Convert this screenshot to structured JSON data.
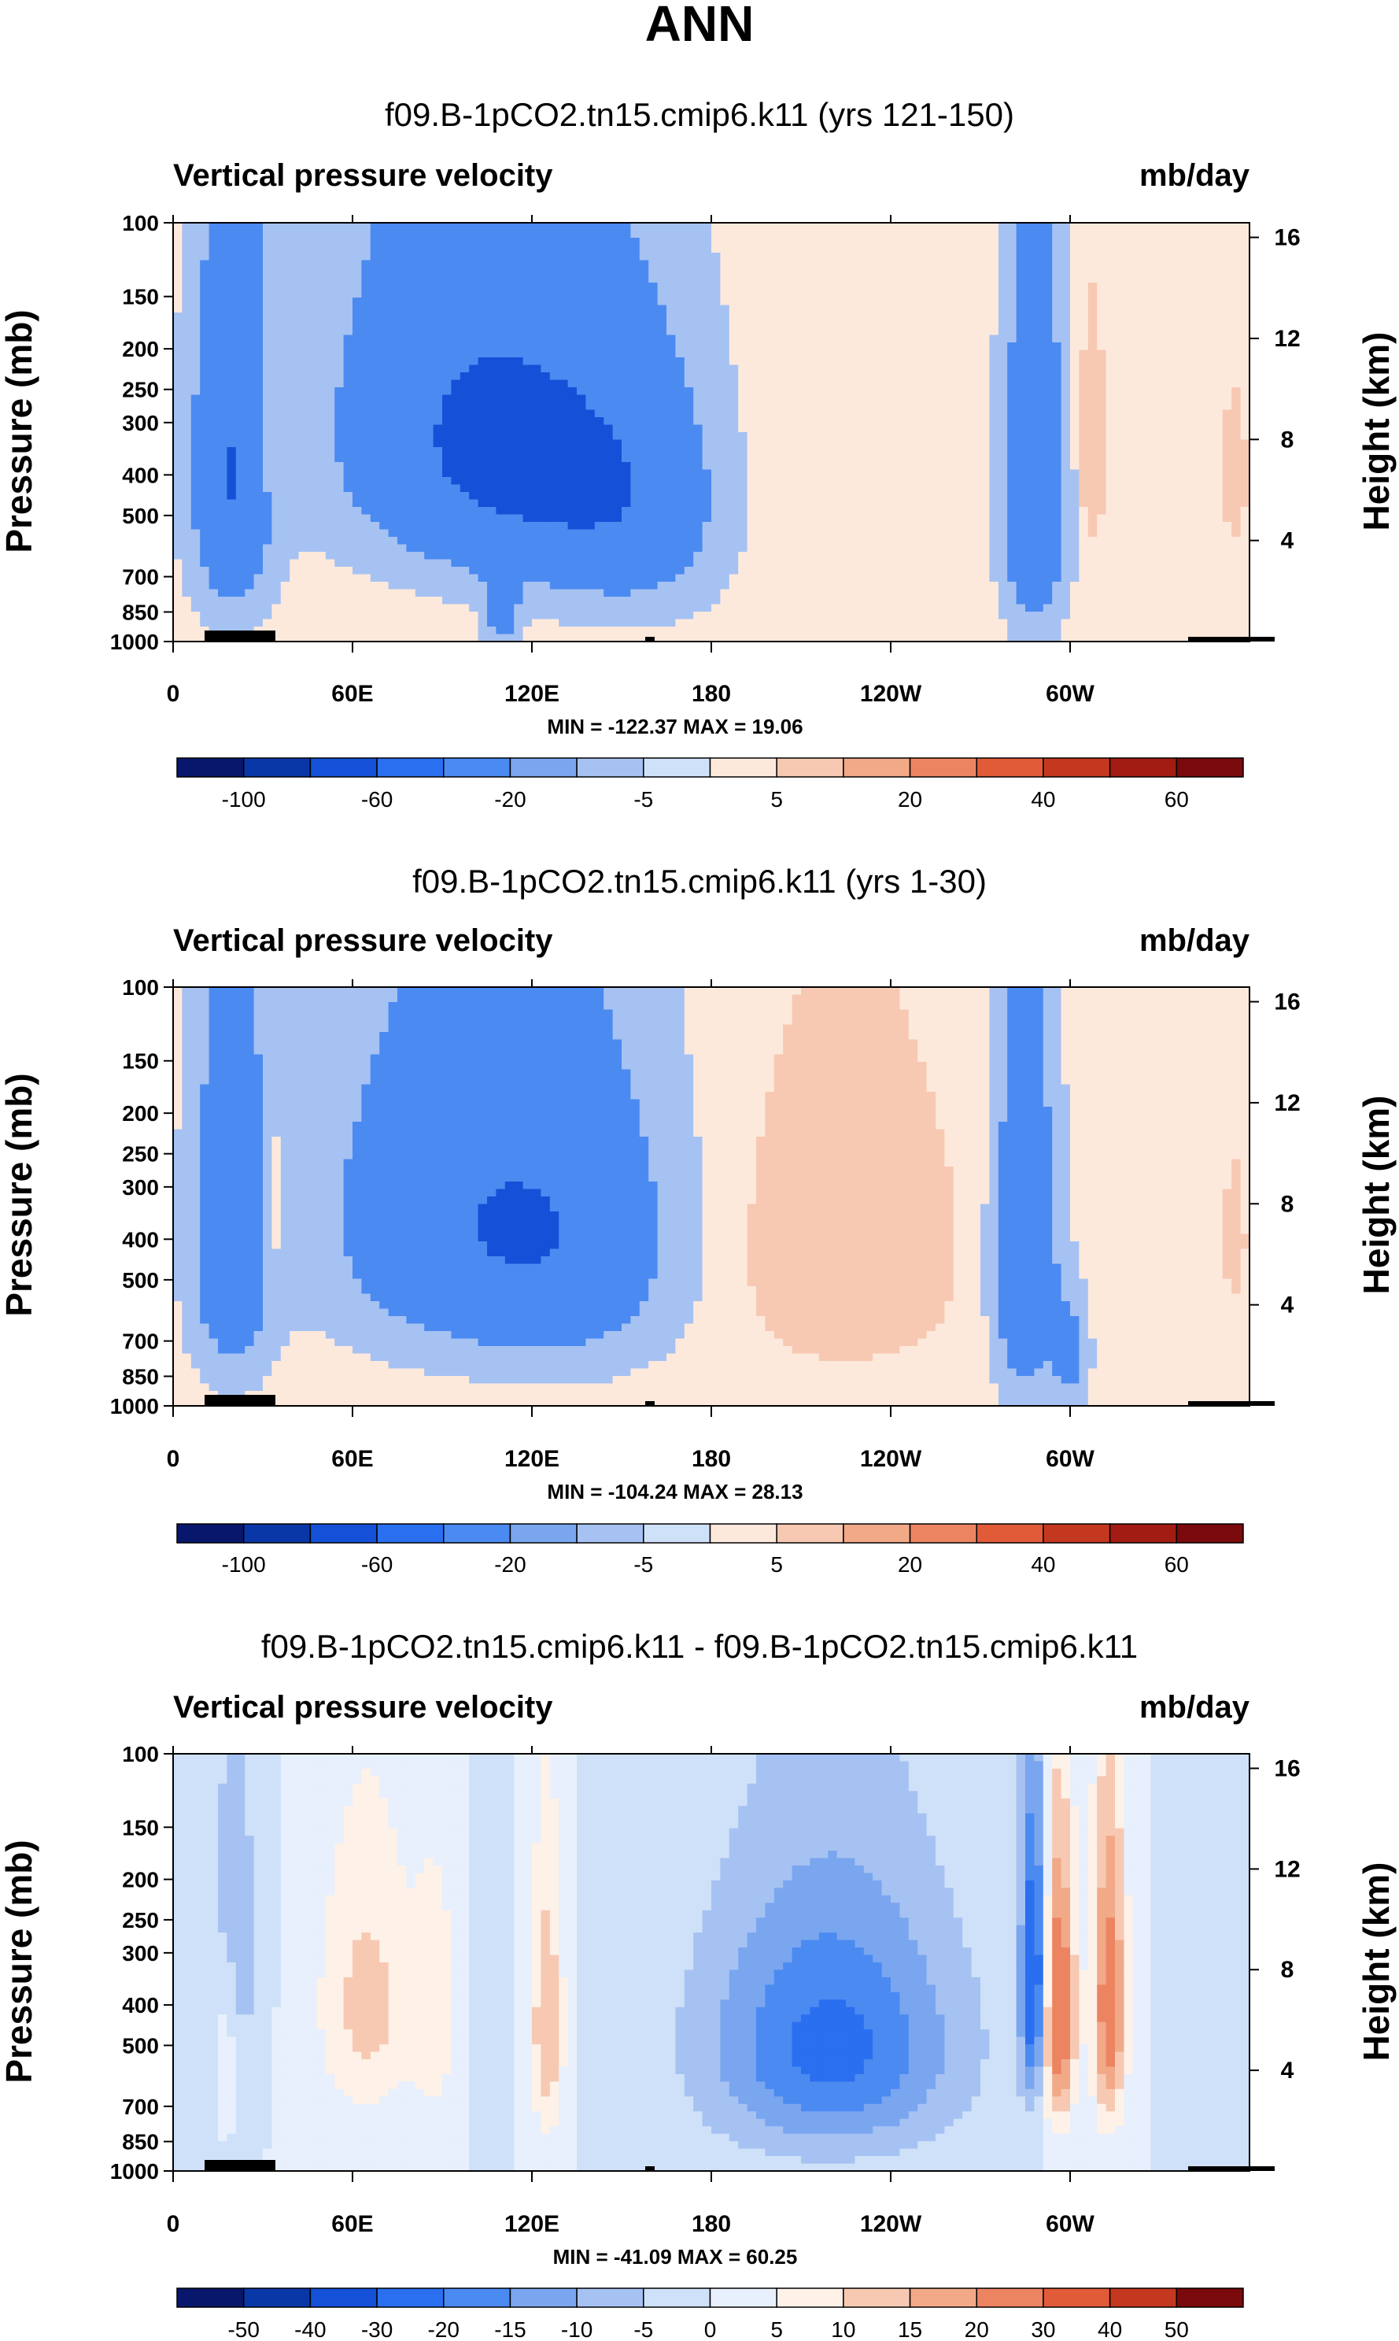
{
  "page_title": "ANN",
  "chart_data": [
    {
      "type": "heatmap",
      "title": "f09.B-1pCO2.tn15.cmip6.k11 (yrs 121-150)",
      "variable": "Vertical pressure velocity",
      "units": "mb/day",
      "ylabel": "Pressure (mb)",
      "ylabel_right": "Height (km)",
      "xticks": [
        "0",
        "60E",
        "120E",
        "180",
        "120W",
        "60W"
      ],
      "xtick_lons": [
        0,
        60,
        120,
        180,
        240,
        300
      ],
      "xlim": [
        0,
        360
      ],
      "yticks": [
        "100",
        "150",
        "200",
        "250",
        "300",
        "400",
        "500",
        "700",
        "850",
        "1000"
      ],
      "ytick_vals": [
        100,
        150,
        200,
        250,
        300,
        400,
        500,
        700,
        850,
        1000
      ],
      "yticks_right": [
        "16",
        "12",
        "8",
        "4"
      ],
      "ytick_right_vals": [
        16,
        12,
        8,
        4
      ],
      "ylim": [
        100,
        1000
      ],
      "min": -122.37,
      "max": 19.06,
      "minmax_text": "MIN = -122.37  MAX =  19.06",
      "colorbar_labels": [
        "-100",
        "-60",
        "-20",
        "-5",
        "5",
        "20",
        "40",
        "60"
      ],
      "field": [
        {
          "lon": 20,
          "p": 400,
          "value": -60,
          "sx": 9,
          "sp": 260
        },
        {
          "lon": 30,
          "p": 350,
          "value": 15,
          "sx": 3,
          "sp": 120
        },
        {
          "lon": 90,
          "p": 300,
          "value": -40,
          "sx": 28,
          "sp": 200
        },
        {
          "lon": 125,
          "p": 380,
          "value": -50,
          "sx": 28,
          "sp": 210
        },
        {
          "lon": 155,
          "p": 500,
          "value": -30,
          "sx": 20,
          "sp": 220
        },
        {
          "lon": 110,
          "p": 850,
          "value": -30,
          "sx": 4,
          "sp": 120
        },
        {
          "lon": 220,
          "p": 450,
          "value": 5,
          "sx": 28,
          "sp": 250
        },
        {
          "lon": 288,
          "p": 450,
          "value": -55,
          "sx": 7,
          "sp": 280
        },
        {
          "lon": 307,
          "p": 350,
          "value": 18,
          "sx": 3,
          "sp": 140
        },
        {
          "lon": 355,
          "p": 400,
          "value": 12,
          "sx": 3,
          "sp": 120
        }
      ]
    },
    {
      "type": "heatmap",
      "title": "f09.B-1pCO2.tn15.cmip6.k11 (yrs 1-30)",
      "variable": "Vertical pressure velocity",
      "units": "mb/day",
      "ylabel": "Pressure (mb)",
      "ylabel_right": "Height (km)",
      "xticks": [
        "0",
        "60E",
        "120E",
        "180",
        "120W",
        "60W"
      ],
      "xtick_lons": [
        0,
        60,
        120,
        180,
        240,
        300
      ],
      "xlim": [
        0,
        360
      ],
      "yticks": [
        "100",
        "150",
        "200",
        "250",
        "300",
        "400",
        "500",
        "700",
        "850",
        "1000"
      ],
      "ytick_vals": [
        100,
        150,
        200,
        250,
        300,
        400,
        500,
        700,
        850,
        1000
      ],
      "yticks_right": [
        "16",
        "12",
        "8",
        "4"
      ],
      "ytick_right_vals": [
        16,
        12,
        8,
        4
      ],
      "ylim": [
        100,
        1000
      ],
      "min": -104.24,
      "max": 28.13,
      "minmax_text": "MIN = -104.24  MAX =  28.13",
      "colorbar_labels": [
        "-100",
        "-60",
        "-20",
        "-5",
        "5",
        "20",
        "40",
        "60"
      ],
      "field": [
        {
          "lon": 20,
          "p": 400,
          "value": -50,
          "sx": 9,
          "sp": 260
        },
        {
          "lon": 33,
          "p": 350,
          "value": 18,
          "sx": 3,
          "sp": 140
        },
        {
          "lon": 90,
          "p": 350,
          "value": -40,
          "sx": 28,
          "sp": 220
        },
        {
          "lon": 130,
          "p": 400,
          "value": -45,
          "sx": 25,
          "sp": 230
        },
        {
          "lon": 225,
          "p": 420,
          "value": 15,
          "sx": 26,
          "sp": 240
        },
        {
          "lon": 285,
          "p": 450,
          "value": -55,
          "sx": 7,
          "sp": 280
        },
        {
          "lon": 300,
          "p": 750,
          "value": -30,
          "sx": 4,
          "sp": 150
        },
        {
          "lon": 355,
          "p": 400,
          "value": 10,
          "sx": 3,
          "sp": 120
        }
      ]
    },
    {
      "type": "heatmap",
      "title": "f09.B-1pCO2.tn15.cmip6.k11 - f09.B-1pCO2.tn15.cmip6.k11",
      "variable": "Vertical pressure velocity",
      "units": "mb/day",
      "ylabel": "Pressure (mb)",
      "ylabel_right": "Height (km)",
      "xticks": [
        "0",
        "60E",
        "120E",
        "180",
        "120W",
        "60W"
      ],
      "xtick_lons": [
        0,
        60,
        120,
        180,
        240,
        300
      ],
      "xlim": [
        0,
        360
      ],
      "yticks": [
        "100",
        "150",
        "200",
        "250",
        "300",
        "400",
        "500",
        "700",
        "850",
        "1000"
      ],
      "ytick_vals": [
        100,
        150,
        200,
        250,
        300,
        400,
        500,
        700,
        850,
        1000
      ],
      "yticks_right": [
        "16",
        "12",
        "8",
        "4"
      ],
      "ytick_right_vals": [
        16,
        12,
        8,
        4
      ],
      "ylim": [
        100,
        1000
      ],
      "min": -41.09,
      "max": 60.25,
      "minmax_text": "MIN = -41.09  MAX = 60.25",
      "colorbar_labels": [
        "-50",
        "-40",
        "-30",
        "-20",
        "-15",
        "-10",
        "-5",
        "0",
        "5",
        "10",
        "15",
        "20",
        "30",
        "40",
        "50"
      ],
      "field": [
        {
          "lon": 20,
          "p": 300,
          "value": -10,
          "sx": 6,
          "sp": 200
        },
        {
          "lon": 18,
          "p": 450,
          "value": 8,
          "sx": 3,
          "sp": 150
        },
        {
          "lon": 65,
          "p": 400,
          "value": 12,
          "sx": 12,
          "sp": 220
        },
        {
          "lon": 88,
          "p": 420,
          "value": 8,
          "sx": 5,
          "sp": 200
        },
        {
          "lon": 105,
          "p": 350,
          "value": -5,
          "sx": 4,
          "sp": 200
        },
        {
          "lon": 125,
          "p": 450,
          "value": 15,
          "sx": 4,
          "sp": 240
        },
        {
          "lon": 220,
          "p": 500,
          "value": -22,
          "sx": 30,
          "sp": 260
        },
        {
          "lon": 288,
          "p": 350,
          "value": -30,
          "sx": 3,
          "sp": 200
        },
        {
          "lon": 296,
          "p": 420,
          "value": 30,
          "sx": 4,
          "sp": 220
        },
        {
          "lon": 313,
          "p": 400,
          "value": 25,
          "sx": 4,
          "sp": 240
        }
      ]
    }
  ],
  "colormaps": {
    "full": [
      "#08176b",
      "#0a37a8",
      "#1451d8",
      "#2a6ff0",
      "#4b8af1",
      "#7aa6ef",
      "#a6c2f2",
      "#cfe1f8",
      "#fde9dc",
      "#f7c9b2",
      "#f1a988",
      "#ec8461",
      "#e15b39",
      "#c4381f",
      "#a21c13",
      "#7a0a0b"
    ],
    "diff": [
      "#08176b",
      "#0a37a8",
      "#1451d8",
      "#2a6ff0",
      "#4b8af1",
      "#7aa6ef",
      "#a6c2f2",
      "#cfe1f8",
      "#e7f0fc",
      "#fdf1e8",
      "#f7c9b2",
      "#f1a988",
      "#ec8461",
      "#e15b39",
      "#c4381f",
      "#7a0a0b"
    ]
  }
}
